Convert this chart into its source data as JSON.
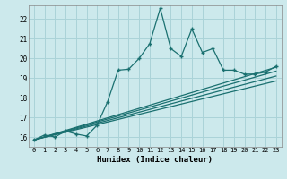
{
  "xlabel": "Humidex (Indice chaleur)",
  "ylabel": "",
  "xlim": [
    -0.5,
    23.5
  ],
  "ylim": [
    15.5,
    22.7
  ],
  "yticks": [
    16,
    17,
    18,
    19,
    20,
    21,
    22
  ],
  "xticks": [
    0,
    1,
    2,
    3,
    4,
    5,
    6,
    7,
    8,
    9,
    10,
    11,
    12,
    13,
    14,
    15,
    16,
    17,
    18,
    19,
    20,
    21,
    22,
    23
  ],
  "bg_color": "#cce9ec",
  "grid_color": "#aad3d8",
  "line_color": "#1a7070",
  "jagged_x": [
    0,
    1,
    2,
    3,
    4,
    5,
    6,
    7,
    8,
    9,
    10,
    11,
    12,
    13,
    14,
    15,
    16,
    17,
    18,
    19,
    20,
    21,
    22,
    23
  ],
  "jagged_y": [
    15.85,
    16.1,
    16.0,
    16.3,
    16.15,
    16.05,
    16.6,
    17.8,
    19.4,
    19.45,
    20.0,
    20.75,
    22.55,
    20.5,
    20.1,
    21.5,
    20.3,
    20.5,
    19.4,
    19.4,
    19.2,
    19.2,
    19.3,
    19.6
  ],
  "ref_lines": [
    {
      "x0": 0,
      "y0": 15.85,
      "x1": 23,
      "y1": 19.55
    },
    {
      "x0": 0,
      "y0": 15.85,
      "x1": 23,
      "y1": 19.35
    },
    {
      "x0": 0,
      "y0": 15.85,
      "x1": 23,
      "y1": 19.1
    },
    {
      "x0": 0,
      "y0": 15.85,
      "x1": 23,
      "y1": 18.85
    }
  ]
}
